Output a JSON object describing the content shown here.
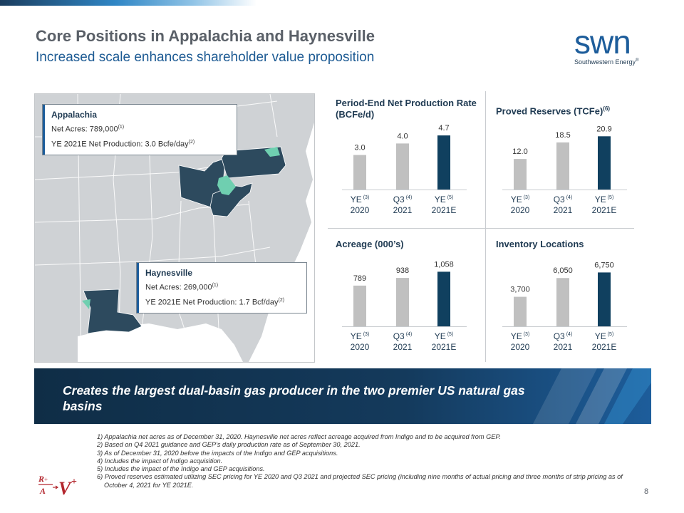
{
  "header": {
    "title": "Core Positions in Appalachia and Haynesville",
    "subtitle": "Increased scale enhances shareholder value proposition"
  },
  "logo": {
    "wordmark": "swn",
    "tagline": "Southwestern Energy",
    "trademark": "®"
  },
  "map": {
    "appalachia": {
      "name": "Appalachia",
      "net_acres": "Net Acres: 789,000",
      "net_acres_note": "(1)",
      "production": "YE 2021E Net Production: 3.0 Bcfe/day",
      "production_note": "(2)"
    },
    "haynesville": {
      "name": "Haynesville",
      "net_acres": "Net Acres: 269,000",
      "net_acres_note": "(1)",
      "production": "YE 2021E Net Production: 1.7 Bcf/day",
      "production_note": "(2)"
    }
  },
  "panels": {
    "production": {
      "title": "Period-End Net Production Rate (BCFe/d)"
    },
    "reserves": {
      "title": "Proved Reserves (TCFe)",
      "title_note": "(6)"
    },
    "acreage": {
      "title": "Acreage (000’s)"
    },
    "inventory": {
      "title": "Inventory Locations"
    }
  },
  "chart_data": [
    {
      "type": "bar",
      "title": "Period-End Net Production Rate (BCFe/d)",
      "categories": [
        [
          "YE",
          "(3)",
          "2020"
        ],
        [
          "Q3",
          "(4)",
          "2021"
        ],
        [
          "YE",
          "(5)",
          "2021E"
        ]
      ],
      "values": [
        3.0,
        4.0,
        4.7
      ],
      "labels": [
        "3.0",
        "4.0",
        "4.7"
      ],
      "ymax": 5.2
    },
    {
      "type": "bar",
      "title": "Proved Reserves (TCFe)",
      "categories": [
        [
          "YE",
          "(3)",
          "2020"
        ],
        [
          "Q3",
          "(4)",
          "2021"
        ],
        [
          "YE",
          "(5)",
          "2021E"
        ]
      ],
      "values": [
        12.0,
        18.5,
        20.9
      ],
      "labels": [
        "12.0",
        "18.5",
        "20.9"
      ],
      "ymax": 23.5
    },
    {
      "type": "bar",
      "title": "Acreage (000’s)",
      "categories": [
        [
          "YE",
          "(3)",
          "2020"
        ],
        [
          "Q3",
          "(4)",
          "2021"
        ],
        [
          "YE",
          "(5)",
          "2021E"
        ]
      ],
      "values": [
        789,
        938,
        1058
      ],
      "labels": [
        "789",
        "938",
        "1,058"
      ],
      "ymax": 1160
    },
    {
      "type": "bar",
      "title": "Inventory Locations",
      "categories": [
        [
          "YE",
          "(3)",
          "2020"
        ],
        [
          "Q3",
          "(4)",
          "2021"
        ],
        [
          "YE",
          "(5)",
          "2021E"
        ]
      ],
      "values": [
        3700,
        6050,
        6750
      ],
      "labels": [
        "3,700",
        "6,050",
        "6,750"
      ],
      "ymax": 7500
    }
  ],
  "colors": {
    "bar_grey": "#c0c0c0",
    "bar_highlight": "#10405f",
    "map_states": "#2d4a5e",
    "map_plays": "#6fcfb0"
  },
  "banner": {
    "text": "Creates the largest dual-basin gas producer in the two premier US natural gas basins"
  },
  "footnotes": [
    "1) Appalachia net acres as of December 31, 2020. Haynesville net acres reflect acreage acquired from Indigo and to be acquired from GEP.",
    "2) Based on Q4 2021 guidance and GEP’s daily production rate as of September 30, 2021.",
    "3) As of December 31, 2020 before the impacts of the Indigo and GEP acquisitions.",
    "4) Includes the impact of Indigo acquisition.",
    "5) Includes the impact of the Indigo and GEP acquisitions.",
    "6) Proved reserves estimated utilizing SEC pricing for YE 2020 and Q3 2021 and projected SEC pricing (including nine months of actual pricing and three months of strip pricing as of October 4, 2021 for YE 2021E."
  ],
  "page_number": "8"
}
